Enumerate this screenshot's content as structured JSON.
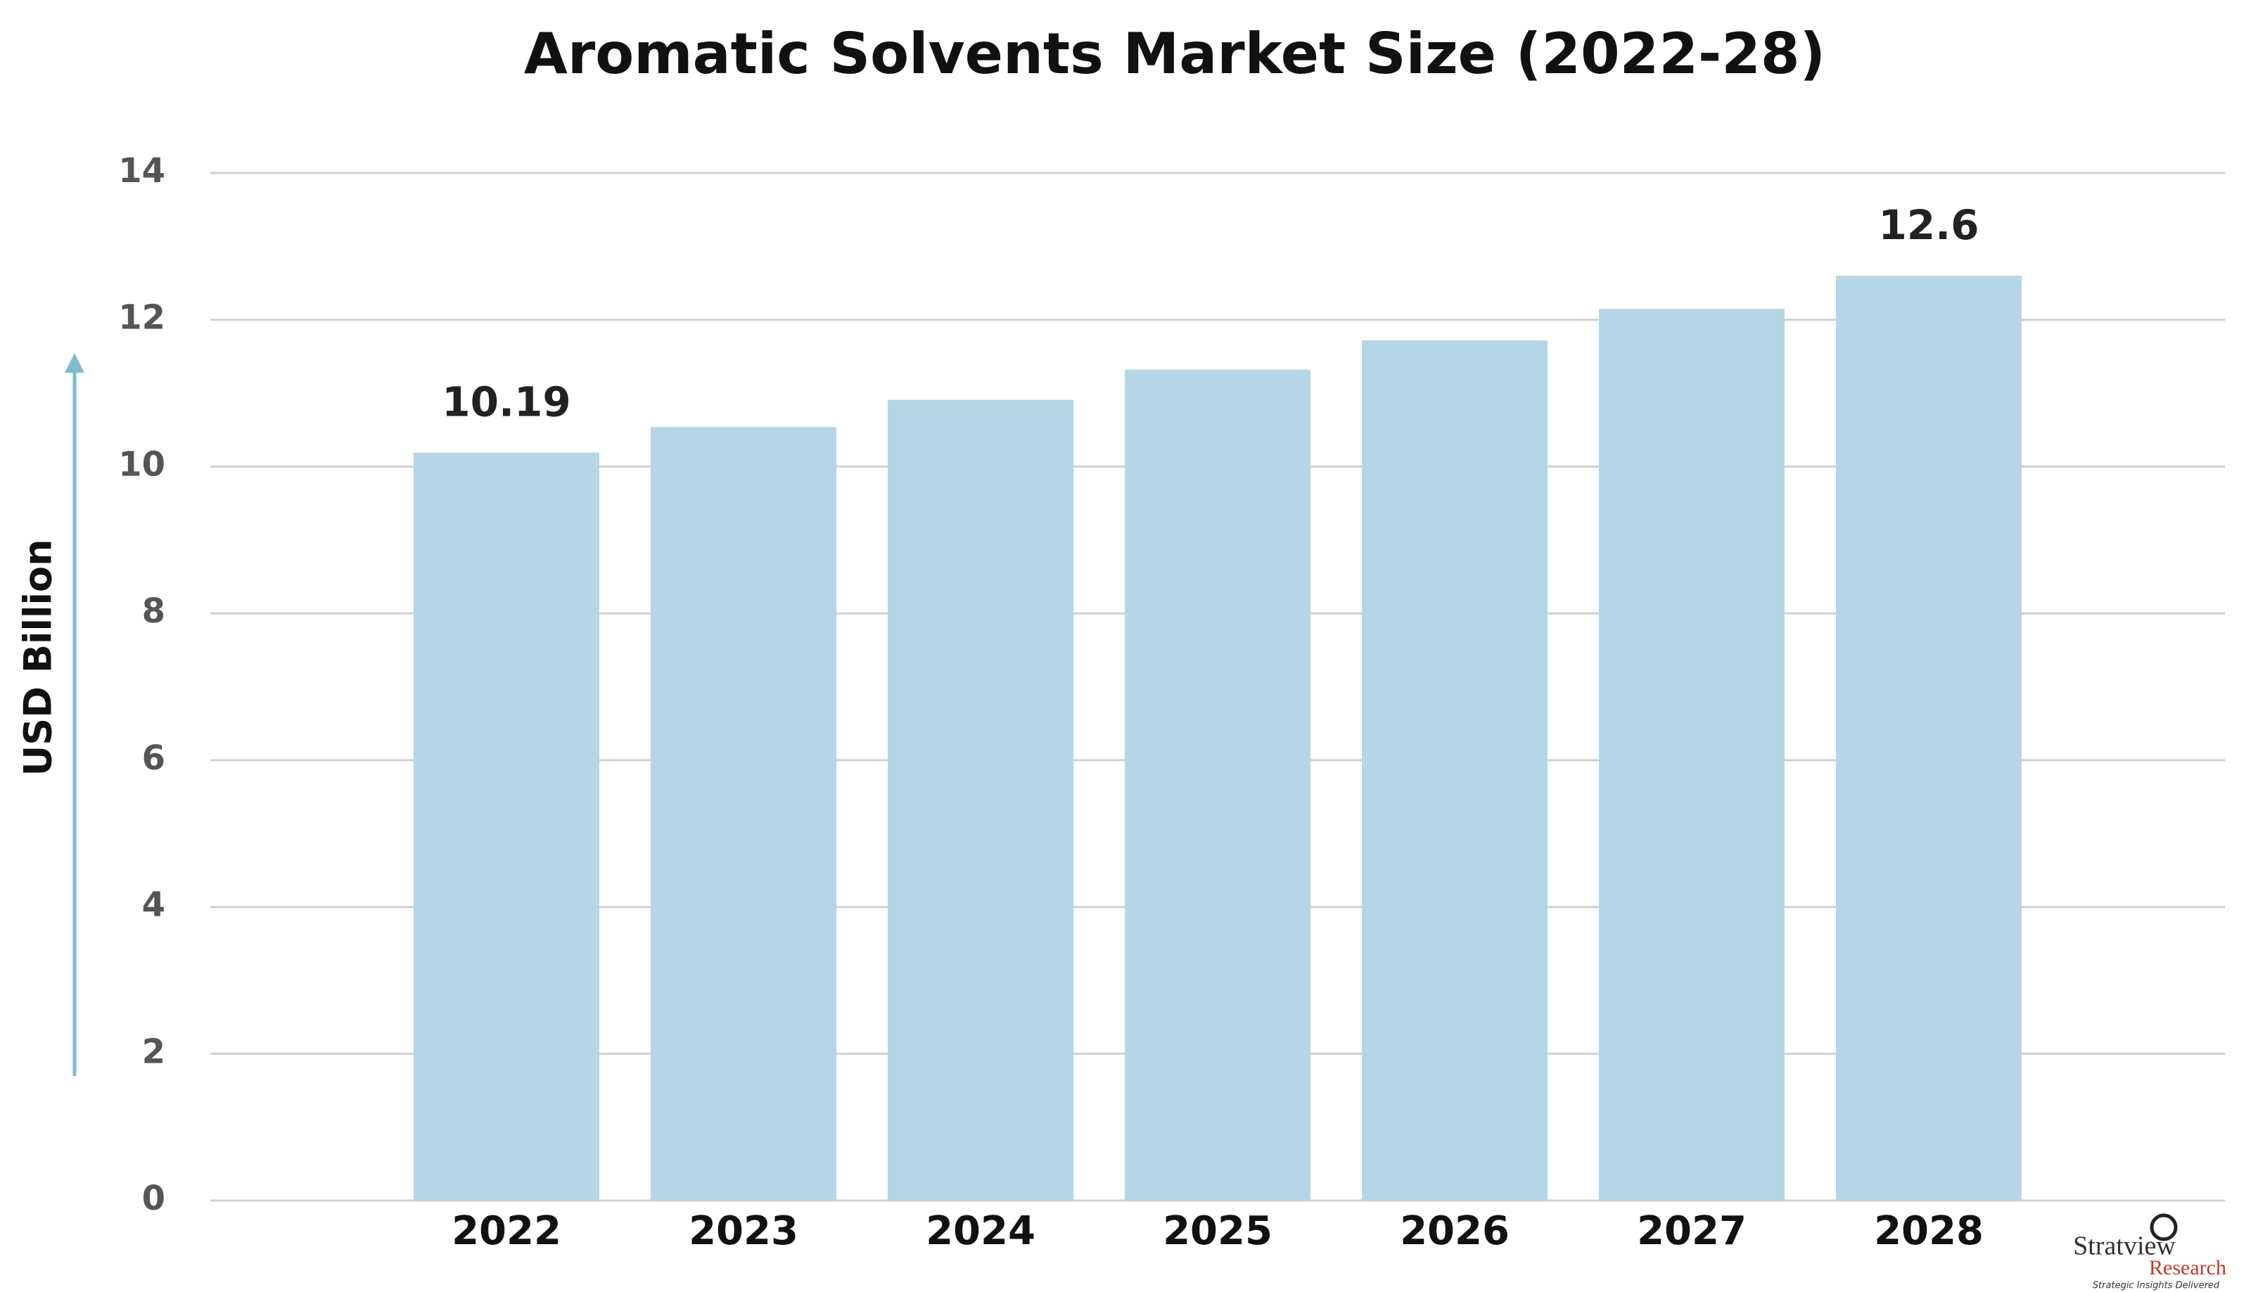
{
  "chart_data": {
    "type": "bar",
    "title": "Aromatic Solvents Market Size (2022-28)",
    "y_label": "USD Billion",
    "categories": [
      "2022",
      "2023",
      "2024",
      "2025",
      "2026",
      "2027",
      "2028"
    ],
    "values": [
      10.19,
      10.54,
      10.91,
      11.32,
      11.72,
      12.15,
      12.6
    ],
    "value_labels": [
      "10.19",
      null,
      null,
      null,
      null,
      null,
      "12.6"
    ],
    "color": "#b5d6e4",
    "ylim": [
      0,
      14
    ],
    "yticks": [
      0,
      2,
      4,
      6,
      8,
      10,
      12,
      14
    ],
    "grid": true
  },
  "logo": {
    "name": "Stratview",
    "sub": "Research",
    "tagline": "Strategic Insights Delivered"
  }
}
